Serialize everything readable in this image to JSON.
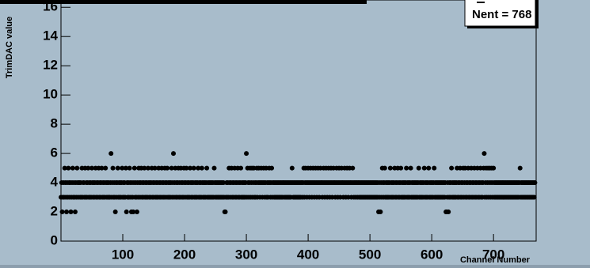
{
  "chart_data": {
    "type": "scatter",
    "x_label": "Channel Number",
    "y_label": "TrimDAC value",
    "stats": "Nent = 768",
    "xlim": [
      0,
      769
    ],
    "ylim": [
      0,
      16.5
    ],
    "xticks": [
      100,
      200,
      300,
      400,
      500,
      600,
      700
    ],
    "yticks": [
      0,
      2,
      4,
      6,
      8,
      10,
      12,
      14,
      16
    ],
    "color": "#000000",
    "x": [
      0,
      1,
      2,
      3,
      4,
      5,
      6,
      7,
      8,
      9,
      10,
      11,
      12,
      13,
      14,
      15,
      16,
      17,
      18,
      19,
      20,
      21,
      22,
      23,
      24,
      25,
      26,
      27,
      28,
      29,
      30,
      31,
      32,
      33,
      34,
      35,
      36,
      37,
      38,
      39,
      40,
      41,
      42,
      43,
      44,
      45,
      46,
      47,
      48,
      49,
      50,
      51,
      52,
      53,
      54,
      55,
      56,
      57,
      58,
      59,
      60,
      61,
      62,
      63,
      64,
      65,
      66,
      67,
      68,
      69,
      70,
      71,
      72,
      73,
      74,
      75,
      76,
      77,
      78,
      79,
      80,
      81,
      82,
      83,
      84,
      85,
      86,
      87,
      88,
      89,
      90,
      91,
      92,
      93,
      94,
      95,
      96,
      97,
      98,
      99,
      100,
      101,
      102,
      103,
      104,
      105,
      106,
      107,
      108,
      109,
      110,
      111,
      112,
      113,
      114,
      115,
      116,
      117,
      118,
      119,
      120,
      121,
      122,
      123,
      124,
      125,
      126,
      127,
      128,
      129,
      130,
      131,
      132,
      133,
      134,
      135,
      136,
      137,
      138,
      139,
      140,
      141,
      142,
      143,
      144,
      145,
      146,
      147,
      148,
      149,
      150,
      151,
      152,
      153,
      154,
      155,
      156,
      157,
      158,
      159,
      160,
      161,
      162,
      163,
      164,
      165,
      166,
      167,
      168,
      169,
      170,
      171,
      172,
      173,
      174,
      175,
      176,
      177,
      178,
      179,
      180,
      181,
      182,
      183,
      184,
      185,
      186,
      187,
      188,
      189,
      190,
      191,
      192,
      193,
      194,
      195,
      196,
      197,
      198,
      199,
      200,
      201,
      202,
      203,
      204,
      205,
      206,
      207,
      208,
      209,
      210,
      211,
      212,
      213,
      214,
      215,
      216,
      217,
      218,
      219,
      220,
      221,
      222,
      223,
      224,
      225,
      226,
      227,
      228,
      229,
      230,
      231,
      232,
      233,
      234,
      235,
      236,
      237,
      238,
      239,
      240,
      241,
      242,
      243,
      244,
      245,
      246,
      247,
      248,
      249,
      250,
      251,
      252,
      253,
      254,
      255,
      256,
      257,
      258,
      259,
      260,
      261,
      262,
      263,
      264,
      265,
      266,
      267,
      268,
      269,
      270,
      271,
      272,
      273,
      274,
      275,
      276,
      277,
      278,
      279,
      280,
      281,
      282,
      283,
      284,
      285,
      286,
      287,
      288,
      289,
      290,
      291,
      292,
      293,
      294,
      295,
      296,
      297,
      298,
      299,
      300,
      301,
      302,
      303,
      304,
      305,
      306,
      307,
      308,
      309,
      310,
      311,
      312,
      313,
      314,
      315,
      316,
      317,
      318,
      319,
      320,
      321,
      322,
      323,
      324,
      325,
      326,
      327,
      328,
      329,
      330,
      331,
      332,
      333,
      334,
      335,
      336,
      337,
      338,
      339,
      340,
      341,
      342,
      343,
      344,
      345,
      346,
      347,
      348,
      349,
      350,
      351,
      352,
      353,
      354,
      355,
      356,
      357,
      358,
      359,
      360,
      361,
      362,
      363,
      364,
      365,
      366,
      367,
      368,
      369,
      370,
      371,
      372,
      373,
      374,
      375,
      376,
      377,
      378,
      379,
      380,
      381,
      382,
      383,
      384,
      385,
      386,
      387,
      388,
      389,
      390,
      391,
      392,
      393,
      394,
      395,
      396,
      397,
      398,
      399,
      400,
      401,
      402,
      403,
      404,
      405,
      406,
      407,
      408,
      409,
      410,
      411,
      412,
      413,
      414,
      415,
      416,
      417,
      418,
      419,
      420,
      421,
      422,
      423,
      424,
      425,
      426,
      427,
      428,
      429,
      430,
      431,
      432,
      433,
      434,
      435,
      436,
      437,
      438,
      439,
      440,
      441,
      442,
      443,
      444,
      445,
      446,
      447,
      448,
      449,
      450,
      451,
      452,
      453,
      454,
      455,
      456,
      457,
      458,
      459,
      460,
      461,
      462,
      463,
      464,
      465,
      466,
      467,
      468,
      469,
      470,
      471,
      472,
      473,
      474,
      475,
      476,
      477,
      478,
      479,
      480,
      481,
      482,
      483,
      484,
      485,
      486,
      487,
      488,
      489,
      490,
      491,
      492,
      493,
      494,
      495,
      496,
      497,
      498,
      499,
      500,
      501,
      502,
      503,
      504,
      505,
      506,
      507,
      508,
      509,
      510,
      511,
      512,
      513,
      514,
      515,
      516,
      517,
      518,
      519,
      520,
      521,
      522,
      523,
      524,
      525,
      526,
      527,
      528,
      529,
      530,
      531,
      532,
      533,
      534,
      535,
      536,
      537,
      538,
      539,
      540,
      541,
      542,
      543,
      544,
      545,
      546,
      547,
      548,
      549,
      550,
      551,
      552,
      553,
      554,
      555,
      556,
      557,
      558,
      559,
      560,
      561,
      562,
      563,
      564,
      565,
      566,
      567,
      568,
      569,
      570,
      571,
      572,
      573,
      574,
      575,
      576,
      577,
      578,
      579,
      580,
      581,
      582,
      583,
      584,
      585,
      586,
      587,
      588,
      589,
      590,
      591,
      592,
      593,
      594,
      595,
      596,
      597,
      598,
      599,
      600,
      601,
      602,
      603,
      604,
      605,
      606,
      607,
      608,
      609,
      610,
      611,
      612,
      613,
      614,
      615,
      616,
      617,
      618,
      619,
      620,
      621,
      622,
      623,
      624,
      625,
      626,
      627,
      628,
      629,
      630,
      631,
      632,
      633,
      634,
      635,
      636,
      637,
      638,
      639,
      640,
      641,
      642,
      643,
      644,
      645,
      646,
      647,
      648,
      649,
      650,
      651,
      652,
      653,
      654,
      655,
      656,
      657,
      658,
      659,
      660,
      661,
      662,
      663,
      664,
      665,
      666,
      667,
      668,
      669,
      670,
      671,
      672,
      673,
      674,
      675,
      676,
      677,
      678,
      679,
      680,
      681,
      682,
      683,
      684,
      685,
      686,
      687,
      688,
      689,
      690,
      691,
      692,
      693,
      694,
      695,
      696,
      697,
      698,
      699,
      700,
      701,
      702,
      703,
      704,
      705,
      706,
      707,
      708,
      709,
      710,
      711,
      712,
      713,
      714,
      715,
      716,
      717,
      718,
      719,
      720,
      721,
      722,
      723,
      724,
      725,
      726,
      727,
      728,
      729,
      730,
      731,
      732,
      733,
      734,
      735,
      736,
      737,
      738,
      739,
      740,
      741,
      742,
      743,
      744,
      745,
      746,
      747,
      748,
      749,
      750,
      751,
      752,
      753,
      754,
      755,
      756,
      757,
      758,
      759,
      760,
      761,
      762,
      763,
      764,
      765,
      766,
      767
    ],
    "values": [
      3,
      4,
      2,
      3,
      4,
      3,
      5,
      4,
      3,
      2,
      4,
      3,
      5,
      4,
      3,
      4,
      2,
      3,
      4,
      5,
      3,
      4,
      3,
      2,
      4,
      3,
      5,
      4,
      3,
      4,
      4,
      3,
      4,
      3,
      5,
      3,
      4,
      4,
      3,
      5,
      3,
      4,
      3,
      4,
      5,
      3,
      4,
      3,
      4,
      3,
      5,
      4,
      3,
      4,
      3,
      4,
      5,
      3,
      4,
      3,
      4,
      5,
      3,
      4,
      3,
      4,
      5,
      3,
      4,
      3,
      4,
      3,
      5,
      4,
      3,
      4,
      3,
      4,
      3,
      3,
      4,
      6,
      3,
      4,
      5,
      3,
      4,
      3,
      2,
      4,
      3,
      4,
      5,
      3,
      4,
      3,
      4,
      3,
      4,
      5,
      3,
      4,
      3,
      4,
      3,
      5,
      2,
      4,
      3,
      4,
      3,
      5,
      4,
      3,
      2,
      4,
      3,
      2,
      4,
      5,
      3,
      4,
      3,
      2,
      4,
      3,
      5,
      4,
      3,
      4,
      5,
      3,
      4,
      3,
      4,
      5,
      3,
      4,
      3,
      4,
      3,
      5,
      4,
      3,
      4,
      3,
      4,
      5,
      3,
      4,
      3,
      4,
      5,
      3,
      4,
      3,
      4,
      3,
      5,
      4,
      3,
      4,
      3,
      5,
      4,
      3,
      4,
      3,
      5,
      4,
      3,
      4,
      5,
      3,
      4,
      3,
      4,
      3,
      4,
      5,
      3,
      4,
      6,
      3,
      4,
      5,
      3,
      4,
      3,
      4,
      5,
      3,
      4,
      3,
      5,
      4,
      3,
      4,
      3,
      5,
      4,
      3,
      4,
      5,
      3,
      4,
      3,
      4,
      3,
      5,
      4,
      3,
      4,
      3,
      4,
      5,
      3,
      4,
      3,
      4,
      3,
      4,
      5,
      3,
      4,
      3,
      4,
      3,
      5,
      4,
      3,
      4,
      3,
      4,
      3,
      4,
      5,
      3,
      4,
      3,
      4,
      3,
      4,
      3,
      4,
      3,
      4,
      3,
      5,
      4,
      3,
      4,
      3,
      4,
      3,
      4,
      3,
      4,
      3,
      4,
      3,
      4,
      3,
      4,
      3,
      2,
      2,
      3,
      4,
      3,
      4,
      3,
      5,
      4,
      3,
      4,
      5,
      3,
      4,
      3,
      4,
      5,
      3,
      4,
      3,
      4,
      5,
      3,
      4,
      3,
      4,
      5,
      3,
      4,
      3,
      4,
      3,
      4,
      3,
      4,
      6,
      3,
      5,
      4,
      3,
      4,
      5,
      3,
      4,
      5,
      3,
      4,
      5,
      3,
      4,
      3,
      4,
      5,
      3,
      4,
      5,
      4,
      3,
      4,
      5,
      4,
      3,
      4,
      5,
      4,
      3,
      4,
      5,
      3,
      4,
      3,
      4,
      5,
      4,
      3,
      4,
      5,
      3,
      4,
      4,
      3,
      4,
      3,
      4,
      3,
      4,
      3,
      4,
      3,
      4,
      3,
      4,
      3,
      4,
      3,
      4,
      4,
      3,
      4,
      3,
      4,
      3,
      4,
      3,
      4,
      3,
      4,
      3,
      4,
      5,
      4,
      3,
      4,
      3,
      4,
      3,
      4,
      3,
      4,
      3,
      4,
      3,
      4,
      3,
      4,
      4,
      3,
      4,
      5,
      3,
      4,
      5,
      4,
      3,
      4,
      5,
      4,
      3,
      4,
      5,
      4,
      3,
      4,
      5,
      4,
      3,
      4,
      5,
      4,
      3,
      4,
      5,
      4,
      3,
      4,
      5,
      4,
      4,
      3,
      4,
      5,
      4,
      3,
      4,
      5,
      4,
      3,
      4,
      5,
      4,
      3,
      4,
      5,
      4,
      3,
      4,
      5,
      4,
      4,
      3,
      4,
      5,
      4,
      3,
      4,
      5,
      4,
      3,
      4,
      5,
      4,
      4,
      3,
      4,
      5,
      4,
      3,
      4,
      5,
      4,
      3,
      4,
      5,
      4,
      4,
      3,
      4,
      5,
      4,
      3,
      4,
      4,
      3,
      4,
      4,
      3,
      4,
      4,
      3,
      4,
      3,
      4,
      3,
      4,
      3,
      4,
      3,
      4,
      3,
      4,
      3,
      4,
      3,
      4,
      3,
      4,
      3,
      4,
      3,
      4,
      3,
      4,
      3,
      4,
      3,
      4,
      3,
      4,
      3,
      2,
      4,
      3,
      2,
      4,
      3,
      5,
      4,
      3,
      4,
      5,
      3,
      4,
      3,
      4,
      3,
      4,
      3,
      4,
      5,
      3,
      4,
      3,
      4,
      3,
      4,
      5,
      3,
      4,
      3,
      4,
      5,
      3,
      4,
      3,
      4,
      5,
      3,
      4,
      3,
      4,
      3,
      4,
      3,
      4,
      5,
      3,
      4,
      3,
      4,
      3,
      4,
      5,
      3,
      4,
      3,
      4,
      3,
      4,
      3,
      4,
      3,
      4,
      3,
      4,
      5,
      3,
      4,
      3,
      4,
      3,
      4,
      3,
      4,
      5,
      3,
      4,
      3,
      4,
      3,
      4,
      5,
      3,
      4,
      3,
      4,
      3,
      4,
      3,
      4,
      5,
      3,
      4,
      3,
      4,
      3,
      4,
      3,
      4,
      3,
      4,
      3,
      4,
      3,
      4,
      3,
      4,
      3,
      4,
      2,
      2,
      3,
      4,
      2,
      3,
      4,
      3,
      4,
      5,
      3,
      4,
      3,
      4,
      3,
      4,
      3,
      4,
      5,
      3,
      4,
      3,
      4,
      5,
      3,
      4,
      3,
      4,
      5,
      3,
      4,
      5,
      3,
      4,
      3,
      4,
      5,
      3,
      4,
      3,
      4,
      5,
      3,
      4,
      3,
      4,
      5,
      3,
      4,
      3,
      4,
      5,
      3,
      4,
      3,
      4,
      5,
      3,
      4,
      3,
      4,
      5,
      6,
      3,
      4,
      5,
      3,
      4,
      5,
      3,
      4,
      5,
      3,
      4,
      5,
      3,
      4,
      5,
      3,
      4,
      3,
      4,
      3,
      4,
      3,
      4,
      3,
      4,
      3,
      4,
      3,
      4,
      3,
      4,
      3,
      4,
      3,
      4,
      3,
      4,
      3,
      4,
      3,
      4,
      3,
      4,
      3,
      4,
      3,
      4,
      3,
      4,
      3,
      4,
      3,
      4,
      3,
      4,
      3,
      4,
      5,
      3,
      4,
      3,
      4,
      3,
      4,
      3,
      4,
      3,
      4,
      3,
      4,
      3,
      4,
      3,
      4,
      3,
      4,
      3,
      4,
      3,
      4,
      3,
      4
    ]
  }
}
